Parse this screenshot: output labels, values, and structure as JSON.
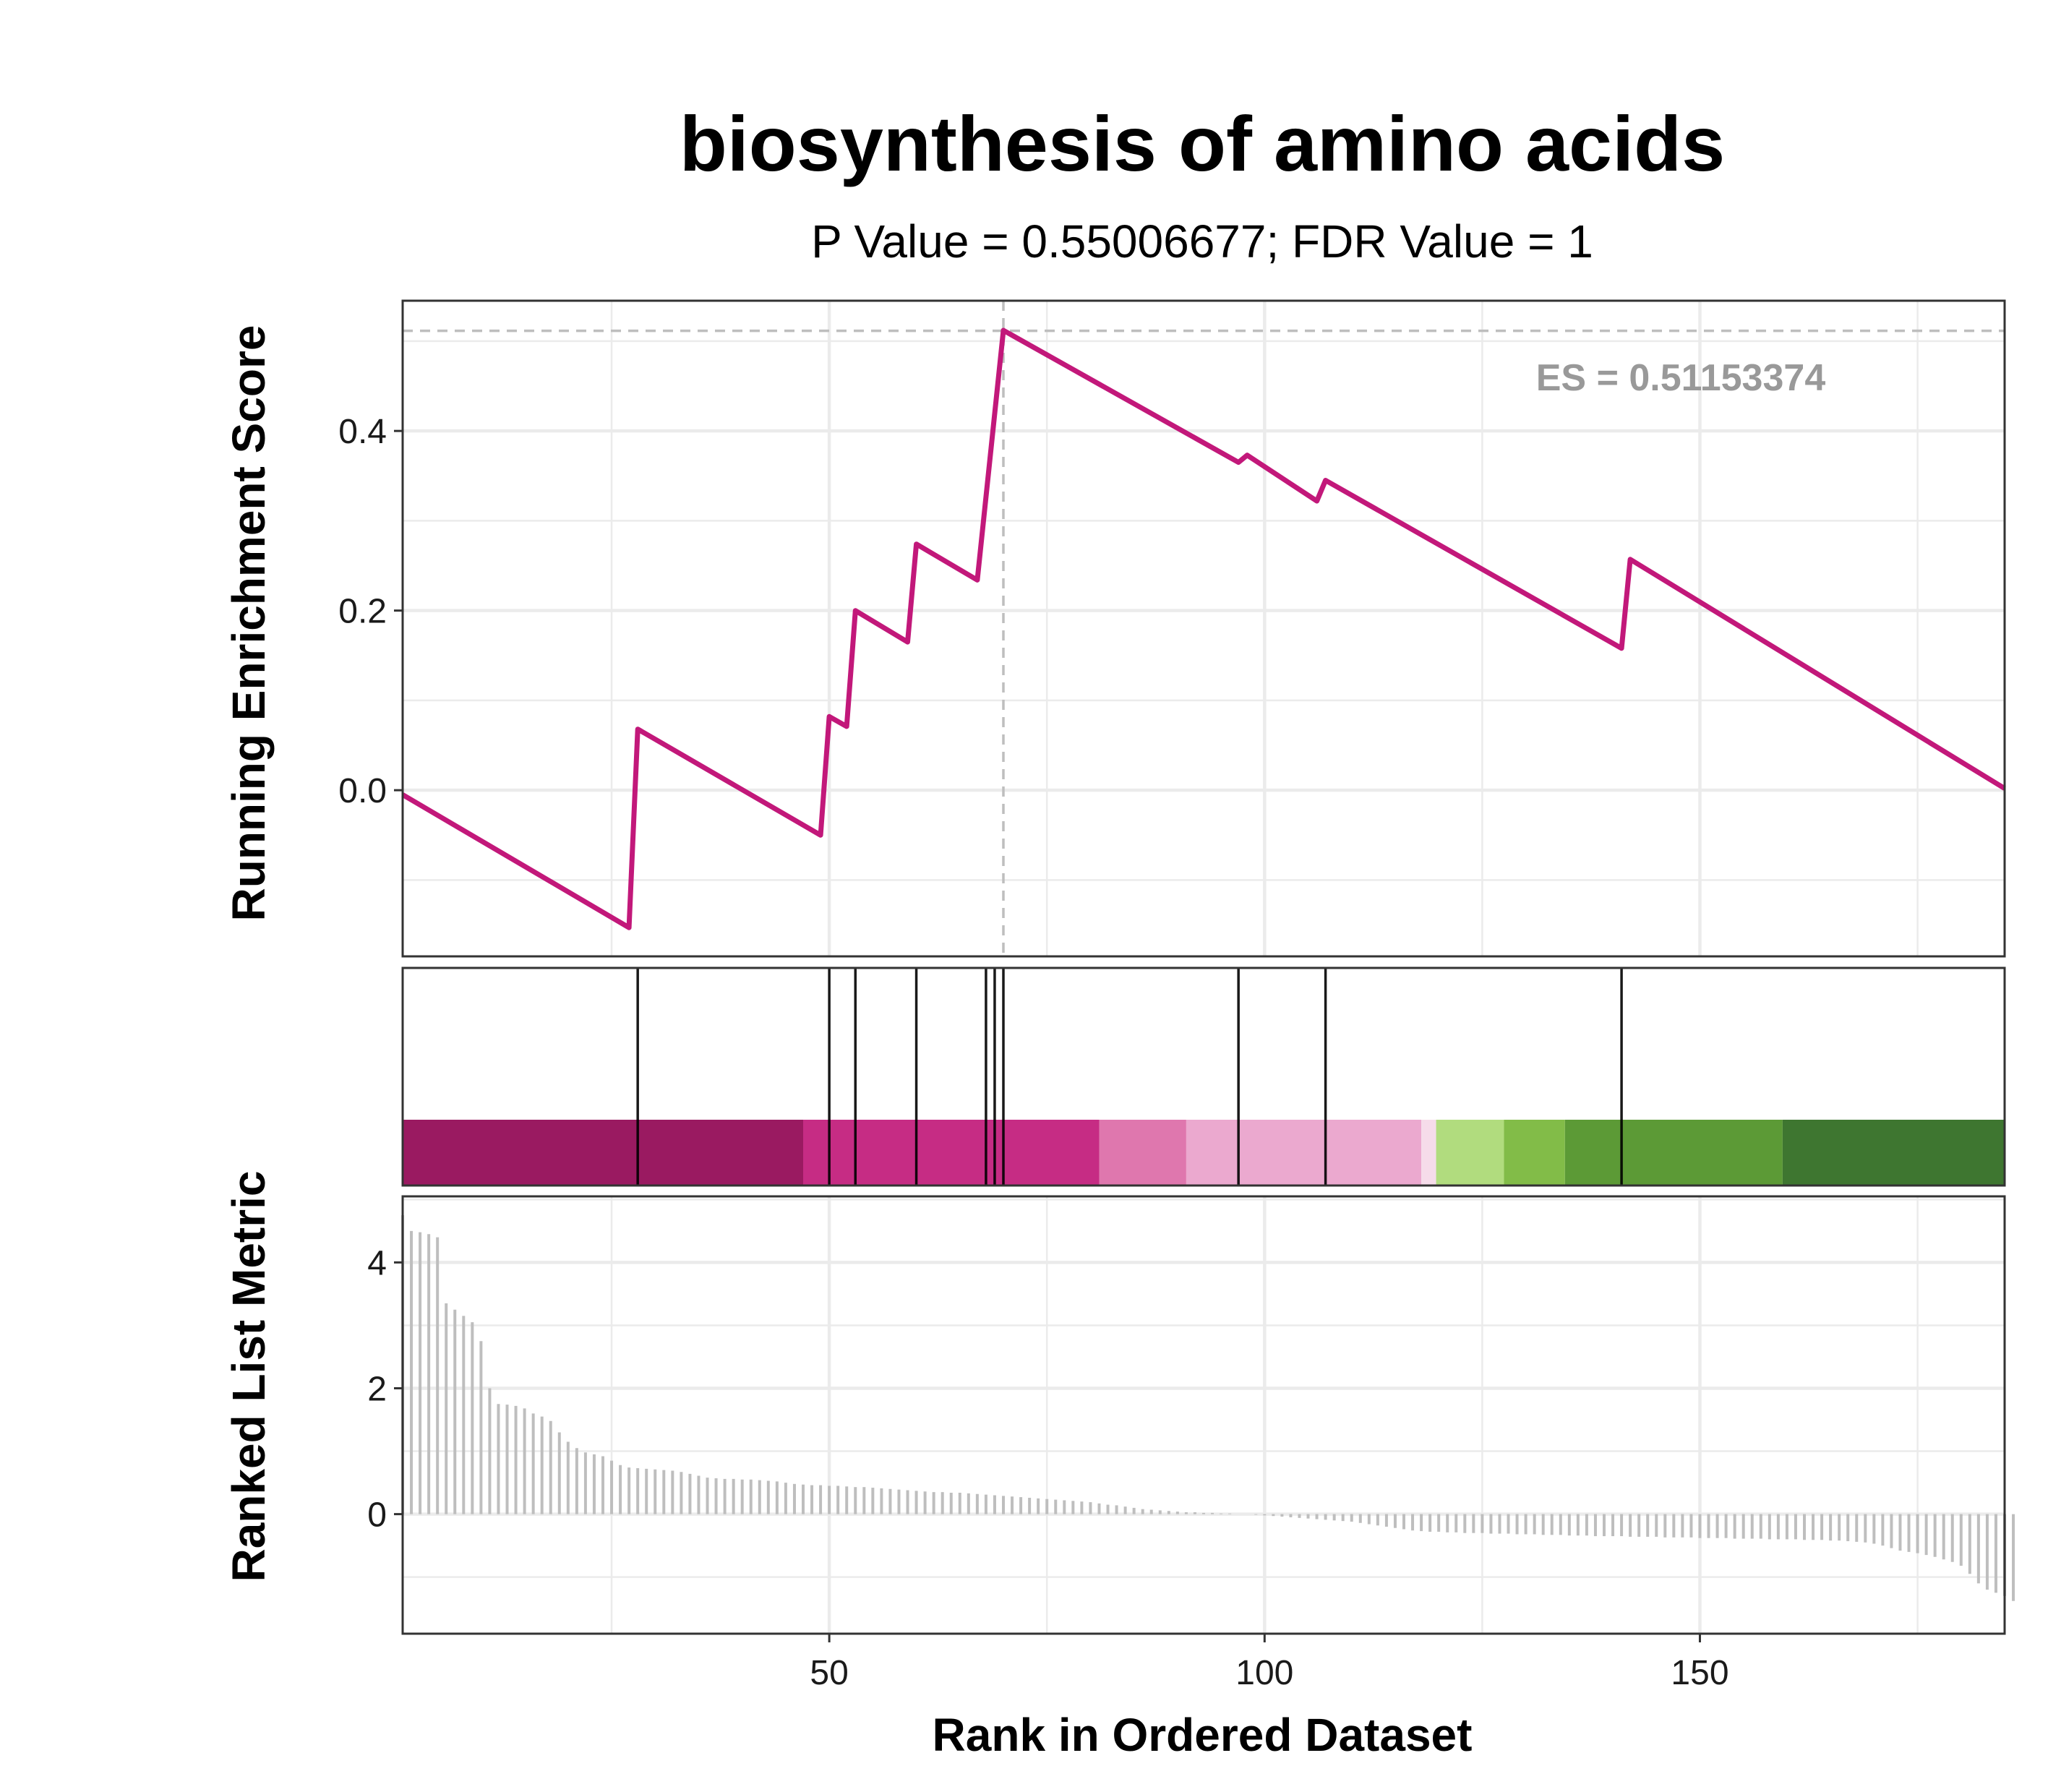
{
  "chart_data": {
    "type": "line",
    "title": "biosynthesis of amino acids",
    "subtitle": "P Value = 0.55006677; FDR Value = 1",
    "xlabel": "Rank in Ordered Dataset",
    "xlim": [
      1,
      185
    ],
    "xticks": [
      50,
      100,
      150
    ],
    "grid": true,
    "es_annotation": "ES = 0.51153374",
    "es_value": 0.51153374,
    "es_rank": 70,
    "line_color": "#C2187A",
    "panels": {
      "running_es": {
        "ylabel": "Running Enrichment Score",
        "ylim": [
          -0.185,
          0.545
        ],
        "yticks": [
          0.0,
          0.2,
          0.4
        ],
        "series": [
          {
            "x": [
              1,
              27,
              28,
              49,
              50,
              52,
              53,
              59,
              60,
              67,
              70,
              97,
              98,
              106,
              107,
              141,
              142,
              185
            ],
            "y": [
              -0.005,
              -0.153,
              0.068,
              -0.05,
              0.082,
              0.071,
              0.2,
              0.165,
              0.274,
              0.234,
              0.512,
              0.365,
              0.373,
              0.322,
              0.345,
              0.158,
              0.257,
              0.002
            ]
          }
        ]
      },
      "hits": {
        "ranks": [
          28,
          50,
          53,
          60,
          68,
          69,
          70,
          97,
          107,
          141
        ]
      },
      "color_bar": {
        "segments": [
          {
            "x0": 1,
            "x1": 47,
            "color": "#9A1A61"
          },
          {
            "x0": 47,
            "x1": 81,
            "color": "#C62C84"
          },
          {
            "x0": 81,
            "x1": 91,
            "color": "#DF77AE"
          },
          {
            "x0": 91,
            "x1": 118,
            "color": "#EBA9CF"
          },
          {
            "x0": 118,
            "x1": 119.7,
            "color": "#F6DCEA"
          },
          {
            "x0": 119.7,
            "x1": 127.5,
            "color": "#B1DC7E"
          },
          {
            "x0": 127.5,
            "x1": 134.5,
            "color": "#82BC48"
          },
          {
            "x0": 134.5,
            "x1": 159.5,
            "color": "#5C9A36"
          },
          {
            "x0": 159.5,
            "x1": 185,
            "color": "#3E7630"
          }
        ]
      },
      "ranked_list": {
        "ylabel": "Ranked List Metric",
        "ylim": [
          -1.9,
          5.05
        ],
        "yticks": [
          0,
          2,
          4
        ],
        "values": [
          4.75,
          4.5,
          4.48,
          4.45,
          4.4,
          3.35,
          3.25,
          3.15,
          3.05,
          2.75,
          2.0,
          1.75,
          1.74,
          1.72,
          1.68,
          1.6,
          1.55,
          1.48,
          1.3,
          1.15,
          1.05,
          0.98,
          0.95,
          0.92,
          0.85,
          0.78,
          0.74,
          0.73,
          0.72,
          0.71,
          0.7,
          0.69,
          0.67,
          0.64,
          0.61,
          0.58,
          0.57,
          0.56,
          0.56,
          0.55,
          0.55,
          0.54,
          0.53,
          0.52,
          0.5,
          0.48,
          0.47,
          0.46,
          0.46,
          0.45,
          0.45,
          0.44,
          0.43,
          0.43,
          0.42,
          0.41,
          0.4,
          0.39,
          0.38,
          0.37,
          0.36,
          0.35,
          0.35,
          0.34,
          0.34,
          0.33,
          0.32,
          0.31,
          0.3,
          0.29,
          0.28,
          0.27,
          0.26,
          0.25,
          0.24,
          0.23,
          0.22,
          0.21,
          0.2,
          0.19,
          0.17,
          0.15,
          0.14,
          0.12,
          0.1,
          0.08,
          0.07,
          0.06,
          0.05,
          0.04,
          0.03,
          0.03,
          0.02,
          0.02,
          0.01,
          0.01,
          0.0,
          0.0,
          -0.01,
          -0.02,
          -0.03,
          -0.04,
          -0.05,
          -0.06,
          -0.07,
          -0.08,
          -0.09,
          -0.1,
          -0.11,
          -0.12,
          -0.14,
          -0.16,
          -0.18,
          -0.2,
          -0.22,
          -0.24,
          -0.26,
          -0.27,
          -0.28,
          -0.28,
          -0.29,
          -0.29,
          -0.3,
          -0.3,
          -0.3,
          -0.31,
          -0.31,
          -0.31,
          -0.32,
          -0.32,
          -0.32,
          -0.33,
          -0.33,
          -0.33,
          -0.34,
          -0.34,
          -0.34,
          -0.35,
          -0.35,
          -0.35,
          -0.35,
          -0.36,
          -0.36,
          -0.36,
          -0.36,
          -0.37,
          -0.37,
          -0.37,
          -0.37,
          -0.38,
          -0.38,
          -0.38,
          -0.38,
          -0.39,
          -0.39,
          -0.39,
          -0.39,
          -0.4,
          -0.4,
          -0.4,
          -0.4,
          -0.41,
          -0.41,
          -0.41,
          -0.42,
          -0.42,
          -0.43,
          -0.44,
          -0.45,
          -0.47,
          -0.5,
          -0.54,
          -0.58,
          -0.6,
          -0.62,
          -0.65,
          -0.68,
          -0.72,
          -0.76,
          -0.82,
          -0.95,
          -1.1,
          -1.2,
          -1.25,
          -1.3,
          -1.38
        ]
      }
    }
  }
}
